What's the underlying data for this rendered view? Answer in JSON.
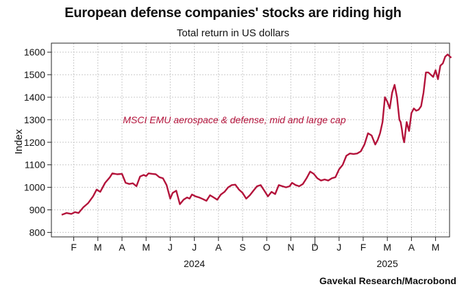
{
  "chart_data": {
    "type": "line",
    "title": "European defense companies' stocks are riding high",
    "subtitle": "Total return in US dollars",
    "ylabel": "Index",
    "xlabel": "",
    "ylim": [
      780,
      1640
    ],
    "yticks": [
      800,
      900,
      1000,
      1100,
      1200,
      1300,
      1400,
      1500,
      1600
    ],
    "month_ticks": [
      "F",
      "M",
      "A",
      "M",
      "J",
      "J",
      "A",
      "S",
      "O",
      "N",
      "D",
      "J",
      "F",
      "M",
      "A",
      "M"
    ],
    "year_labels": [
      "2024",
      "2025"
    ],
    "grid": true,
    "source": "Gavekal Research/Macrobond",
    "series": [
      {
        "name": "MSCI EMU aerospace & defense, mid and large cap",
        "color": "#b3123a",
        "x": [
          0,
          0.2,
          0.4,
          0.55,
          0.7,
          0.9,
          1.1,
          1.3,
          1.45,
          1.6,
          1.8,
          2.0,
          2.1,
          2.3,
          2.5,
          2.65,
          2.8,
          2.95,
          3.1,
          3.25,
          3.4,
          3.5,
          3.6,
          3.75,
          3.9,
          4.05,
          4.2,
          4.35,
          4.5,
          4.6,
          4.75,
          4.9,
          5.05,
          5.2,
          5.3,
          5.4,
          5.55,
          5.7,
          5.85,
          6.0,
          6.15,
          6.3,
          6.45,
          6.6,
          6.75,
          6.9,
          7.05,
          7.2,
          7.35,
          7.5,
          7.65,
          7.8,
          7.95,
          8.1,
          8.25,
          8.4,
          8.55,
          8.7,
          8.85,
          9.0,
          9.15,
          9.3,
          9.45,
          9.55,
          9.7,
          9.85,
          10.0,
          10.15,
          10.3,
          10.45,
          10.6,
          10.75,
          10.9,
          11.05,
          11.2,
          11.35,
          11.5,
          11.65,
          11.8,
          11.95,
          12.1,
          12.25,
          12.4,
          12.55,
          12.7,
          12.85,
          13.0,
          13.1,
          13.2,
          13.3,
          13.4,
          13.5,
          13.6,
          13.7,
          13.8,
          13.9,
          14.0,
          14.05,
          14.1,
          14.15,
          14.2,
          14.3,
          14.4,
          14.5,
          14.6,
          14.7,
          14.8,
          14.9,
          15.0,
          15.1,
          15.2,
          15.3,
          15.4,
          15.5,
          15.6,
          15.7,
          15.8,
          15.9,
          16.0,
          16.1,
          16.15
        ],
        "values": [
          878,
          886,
          882,
          890,
          886,
          912,
          930,
          960,
          990,
          980,
          1020,
          1045,
          1062,
          1058,
          1060,
          1020,
          1015,
          1018,
          1005,
          1048,
          1055,
          1050,
          1062,
          1060,
          1058,
          1045,
          1040,
          1010,
          950,
          975,
          985,
          925,
          945,
          955,
          950,
          968,
          960,
          955,
          948,
          940,
          965,
          955,
          945,
          968,
          980,
          1000,
          1010,
          1012,
          990,
          975,
          950,
          965,
          985,
          1005,
          1010,
          985,
          960,
          980,
          970,
          1010,
          1005,
          1000,
          1005,
          1020,
          1010,
          1005,
          1015,
          1040,
          1070,
          1060,
          1040,
          1030,
          1035,
          1030,
          1040,
          1045,
          1080,
          1100,
          1140,
          1150,
          1148,
          1150,
          1160,
          1190,
          1240,
          1230,
          1190,
          1210,
          1240,
          1290,
          1400,
          1380,
          1350,
          1420,
          1455,
          1400,
          1300,
          1290,
          1260,
          1220,
          1200,
          1290,
          1250,
          1330,
          1350,
          1340,
          1345,
          1360,
          1420,
          1510,
          1510,
          1500,
          1490,
          1520,
          1480,
          1540,
          1550,
          1580,
          1590,
          1580,
          1575
        ]
      }
    ]
  }
}
